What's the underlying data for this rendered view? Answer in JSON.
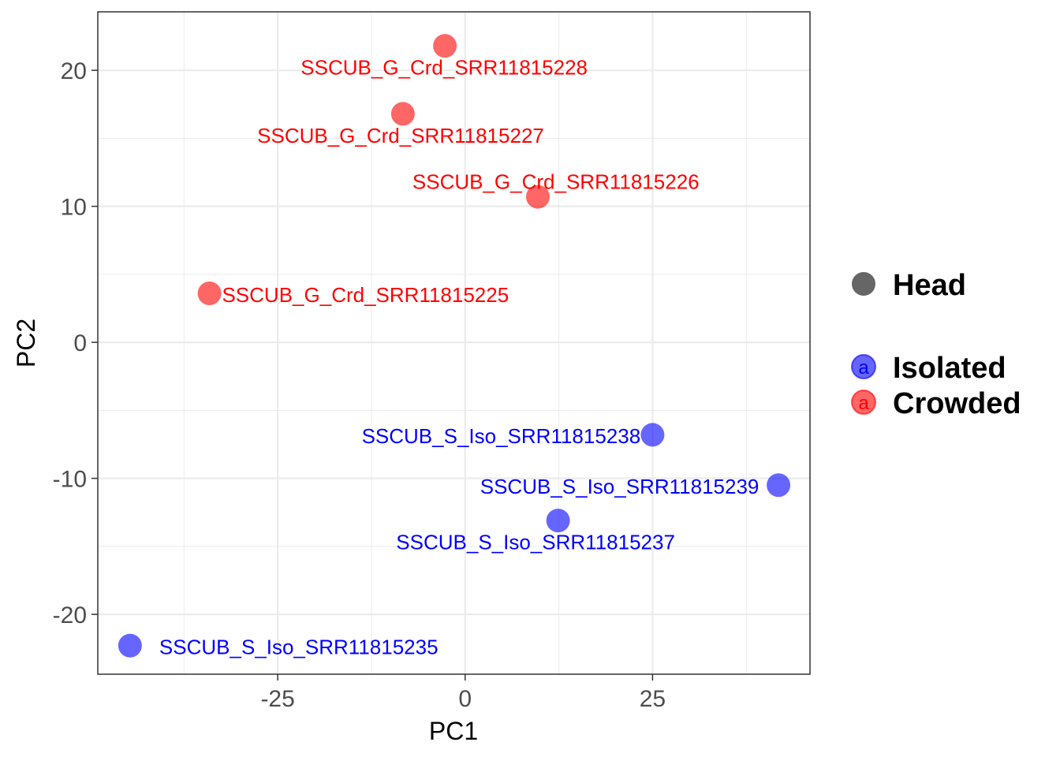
{
  "chart_data": {
    "type": "scatter",
    "xlabel": "PC1",
    "ylabel": "PC2",
    "xlim": [
      -49,
      46
    ],
    "ylim": [
      -24.4,
      24.3
    ],
    "x_ticks": [
      -25,
      0,
      25
    ],
    "x_tick_labels": [
      "-25",
      "0",
      "25"
    ],
    "y_ticks": [
      -20,
      -10,
      0,
      10,
      20
    ],
    "y_tick_labels": [
      "-20",
      "-10",
      "0",
      "10",
      "20"
    ],
    "x_minor": [
      -37.5,
      -12.5,
      12.5,
      37.5
    ],
    "y_minor": [
      -15,
      -5,
      5,
      15
    ],
    "grid": true,
    "legend_position": "right",
    "legend": {
      "shape_entries": [
        {
          "label": "Head",
          "color": "#666666"
        }
      ],
      "color_entries": [
        {
          "label": "Isolated",
          "color": "#0000FF",
          "glyph": "a"
        },
        {
          "label": "Crowded",
          "color": "#FF0000",
          "glyph": "a"
        }
      ]
    },
    "series": [
      {
        "name": "Isolated",
        "color": "#0000FF",
        "points": [
          {
            "x": 25.0,
            "y": -6.8,
            "label": "SSCUB_S_Iso_SRR11815238",
            "lx": 4.8,
            "ly": -6.9
          },
          {
            "x": 41.8,
            "y": -10.5,
            "label": "SSCUB_S_Iso_SRR11815239",
            "lx": 20.6,
            "ly": -10.6
          },
          {
            "x": 12.4,
            "y": -13.1,
            "label": "SSCUB_S_Iso_SRR11815237",
            "lx": 9.4,
            "ly": -14.7
          },
          {
            "x": -44.7,
            "y": -22.3,
            "label": "SSCUB_S_Iso_SRR11815235",
            "lx": -22.2,
            "ly": -22.4
          }
        ]
      },
      {
        "name": "Crowded",
        "color": "#FF0000",
        "points": [
          {
            "x": -2.7,
            "y": 21.8,
            "label": "SSCUB_G_Crd_SRR11815228",
            "lx": -2.8,
            "ly": 20.2
          },
          {
            "x": -8.3,
            "y": 16.8,
            "label": "SSCUB_G_Crd_SRR11815227",
            "lx": -8.6,
            "ly": 15.2
          },
          {
            "x": 9.7,
            "y": 10.7,
            "label": "SSCUB_G_Crd_SRR11815226",
            "lx": 12.1,
            "ly": 11.8
          },
          {
            "x": -34.1,
            "y": 3.6,
            "label": "SSCUB_G_Crd_SRR11815225",
            "lx": -13.3,
            "ly": 3.5
          }
        ]
      }
    ]
  }
}
